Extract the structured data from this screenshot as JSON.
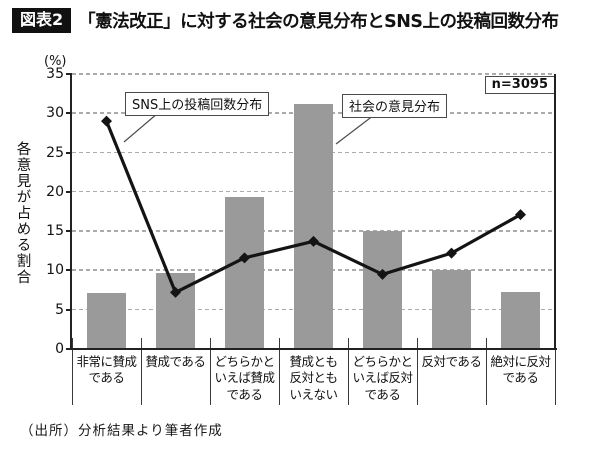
{
  "header": {
    "badge": "図表2",
    "title": "「憲法改正」に対する社会の意見分布とSNS上の投稿回数分布"
  },
  "footer": {
    "source": "（出所）分析結果より筆者作成"
  },
  "colors": {
    "bar": "#9a9a9a",
    "line": "#141414",
    "grid": "#ababab",
    "axis": "#222222",
    "badge_bg": "#111111",
    "badge_text": "#ffffff"
  },
  "chart_data": {
    "type": "bar+line",
    "title": "「憲法改正」に対する社会の意見分布とSNS上の投稿回数分布",
    "unit_label": "(%)",
    "ylabel": "各意見が占める割合",
    "n_label": "n=3095",
    "ylim": [
      0,
      35
    ],
    "yticks": [
      0,
      5,
      10,
      15,
      20,
      25,
      30,
      35
    ],
    "grid": "horizontal dashed",
    "legend_position": "inline annotation boxes with leader lines",
    "categories": [
      "非常に賛成である",
      "賛成である",
      "どちらかといえば賛成である",
      "賛成とも反対ともいえない",
      "どちらかといえば反対である",
      "反対である",
      "絶対に反対である"
    ],
    "category_lines": [
      [
        "非常に賛成",
        "である"
      ],
      [
        "賛成である"
      ],
      [
        "どちらかと",
        "いえば賛成",
        "である"
      ],
      [
        "賛成とも",
        "反対とも",
        "いえない"
      ],
      [
        "どちらかと",
        "いえば反対",
        "である"
      ],
      [
        "反対である"
      ],
      [
        "絶対に反対",
        "である"
      ]
    ],
    "series": [
      {
        "name": "社会の意見分布",
        "type": "bar",
        "marker": "none",
        "values": [
          7.1,
          9.7,
          19.3,
          31.2,
          15.0,
          10.0,
          7.2
        ]
      },
      {
        "name": "SNS上の投稿回数分布",
        "type": "line",
        "marker": "diamond",
        "values": [
          29.0,
          7.2,
          11.6,
          13.7,
          9.5,
          12.2,
          17.1
        ]
      }
    ],
    "annotations": [
      {
        "label": "SNS上の投稿回数分布",
        "points_to": "line series"
      },
      {
        "label": "社会の意見分布",
        "points_to": "bar series"
      }
    ]
  }
}
